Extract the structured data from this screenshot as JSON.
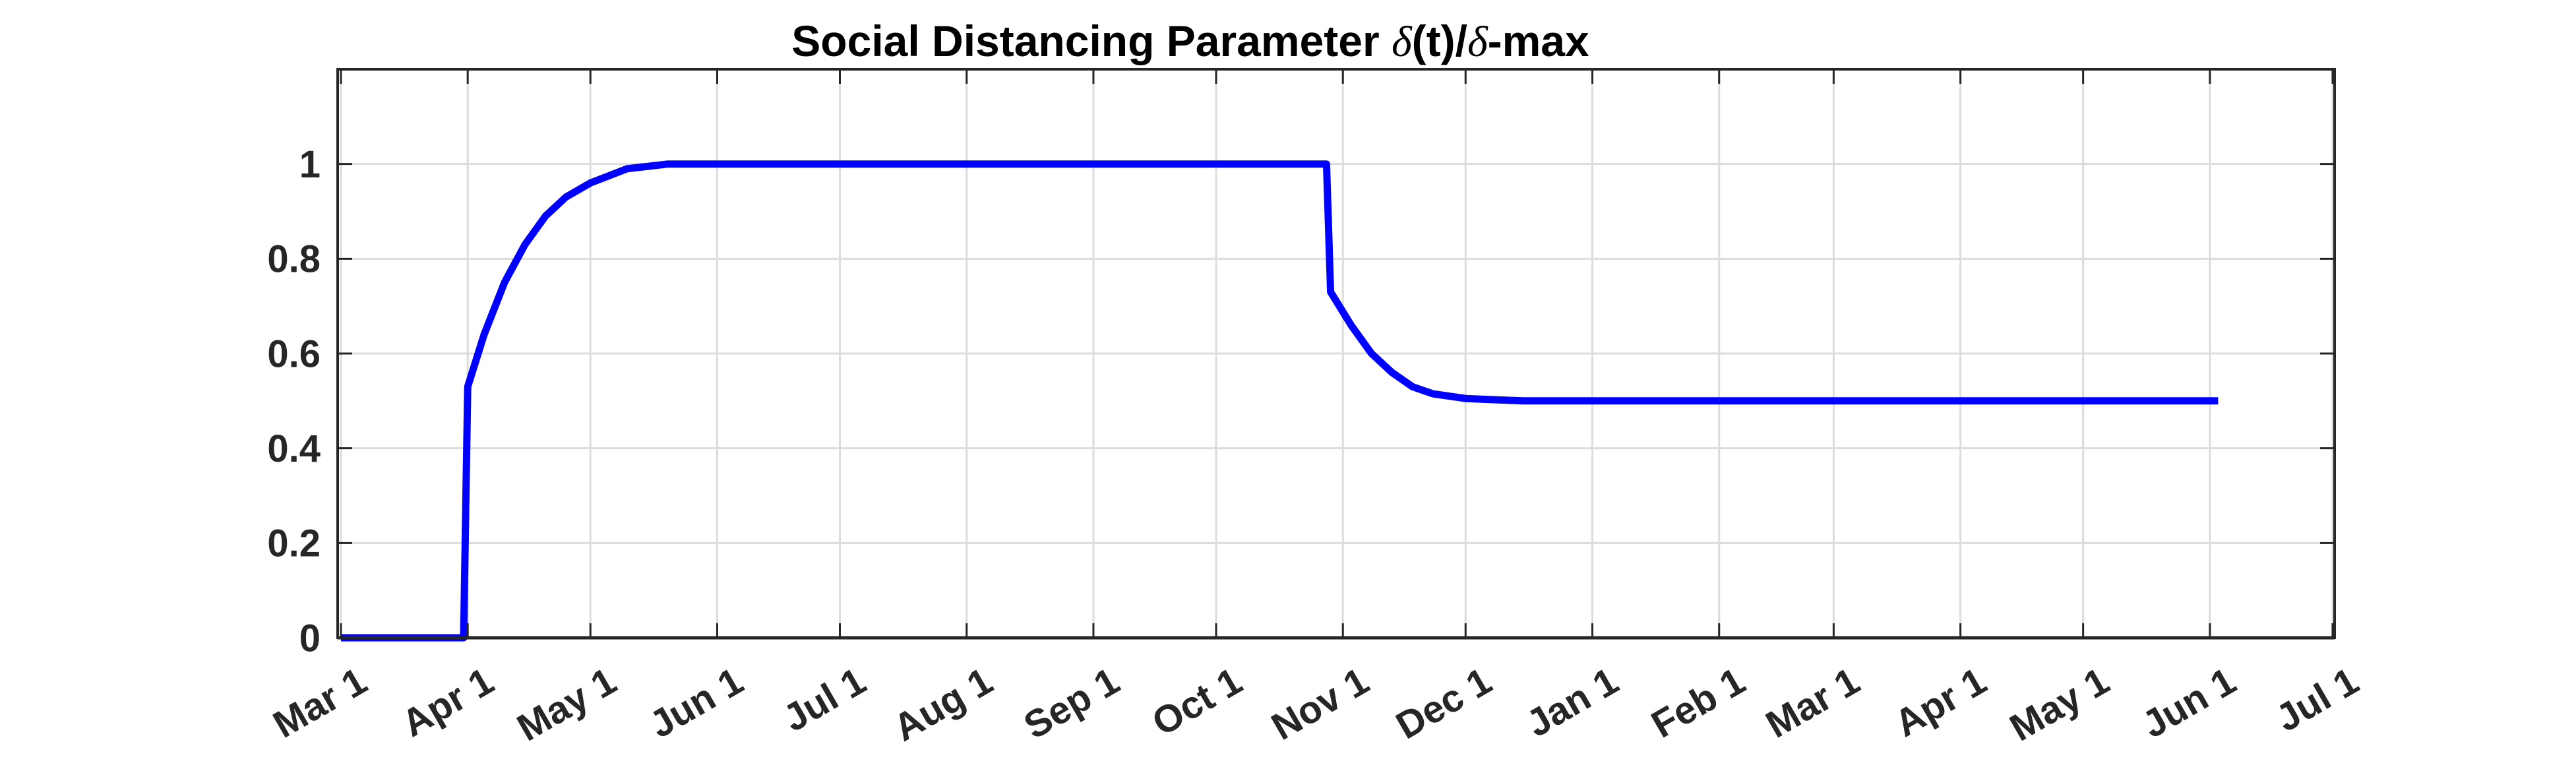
{
  "chart_data": {
    "type": "line",
    "title": {
      "prefix": "Social Distancing Parameter ",
      "symbol1": "δ",
      "middle": "(t)/",
      "symbol2": "δ",
      "suffix": "-max"
    },
    "xlabel": "",
    "ylabel": "",
    "grid": true,
    "line_color": "#0000ff",
    "x_ticks": [
      "Mar 1",
      "Apr 1",
      "May 1",
      "Jun 1",
      "Jul 1",
      "Aug 1",
      "Sep 1",
      "Oct 1",
      "Nov 1",
      "Dec 1",
      "Jan 1",
      "Feb 1",
      "Mar 1",
      "Apr 1",
      "May 1",
      "Jun 1",
      "Jul 1"
    ],
    "y_ticks": [
      "0",
      "0.2",
      "0.4",
      "0.6",
      "0.8",
      "1"
    ],
    "ylim": [
      0,
      1.2
    ],
    "series": [
      {
        "x": [
          "Mar 1",
          "Mar 31",
          "Apr 1",
          "Apr 5",
          "Apr 10",
          "Apr 15",
          "Apr 20",
          "Apr 25",
          "May 1",
          "May 10",
          "May 20",
          "Jun 1",
          "Jul 1",
          "Aug 1",
          "Sep 1",
          "Oct 1",
          "Oct 28",
          "Oct 29",
          "Nov 3",
          "Nov 8",
          "Nov 13",
          "Nov 18",
          "Nov 23",
          "Dec 1",
          "Dec 15",
          "Jan 1",
          "Feb 1",
          "Mar 1",
          "Apr 1",
          "May 1",
          "Jun 3"
        ],
        "values": [
          0,
          0,
          0.53,
          0.64,
          0.75,
          0.83,
          0.89,
          0.93,
          0.96,
          0.99,
          1.0,
          1.0,
          1.0,
          1.0,
          1.0,
          1.0,
          1.0,
          0.73,
          0.66,
          0.6,
          0.56,
          0.53,
          0.515,
          0.505,
          0.5,
          0.5,
          0.5,
          0.5,
          0.5,
          0.5,
          0.5
        ]
      }
    ]
  }
}
